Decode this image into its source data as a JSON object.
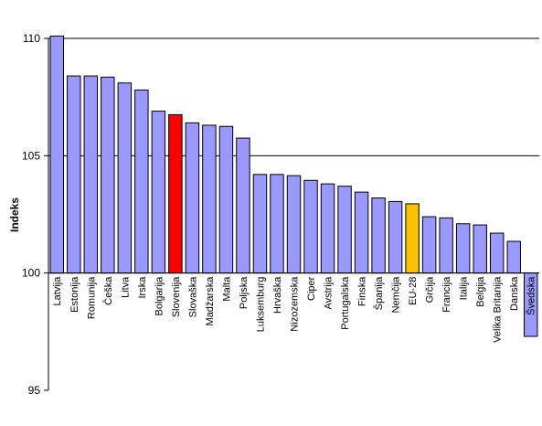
{
  "chart_data": {
    "type": "bar",
    "title": "",
    "xlabel": "",
    "ylabel": "Indeks",
    "ylim": [
      95,
      110
    ],
    "yticks": [
      95,
      100,
      105,
      110
    ],
    "grid": true,
    "baseline": 100,
    "categories": [
      "Latvija",
      "Estonija",
      "Romunija",
      "Češka",
      "Litva",
      "Irska",
      "Bolgarija",
      "Slovenija",
      "Slovaška",
      "Madžarska",
      "Malta",
      "Poljska",
      "Luksemburg",
      "Hrvaška",
      "Nizozemska",
      "Ciper",
      "Avstrija",
      "Portugalska",
      "Finska",
      "Španija",
      "Nemčija",
      "EU-28",
      "Grčija",
      "Francija",
      "Italija",
      "Belgija",
      "Velika Britanija",
      "Danska",
      "Švedska"
    ],
    "values": [
      110.1,
      108.4,
      108.4,
      108.35,
      108.1,
      107.8,
      106.9,
      106.75,
      106.4,
      106.3,
      106.25,
      105.75,
      104.2,
      104.2,
      104.15,
      103.95,
      103.8,
      103.7,
      103.45,
      103.2,
      103.05,
      102.95,
      102.4,
      102.35,
      102.1,
      102.05,
      101.7,
      101.35,
      97.3
    ],
    "colors": {
      "default": "#9999ff",
      "Slovenija": "#ff0000",
      "EU-28": "#ffc000",
      "border": "#000000",
      "grid": "#000000"
    }
  }
}
